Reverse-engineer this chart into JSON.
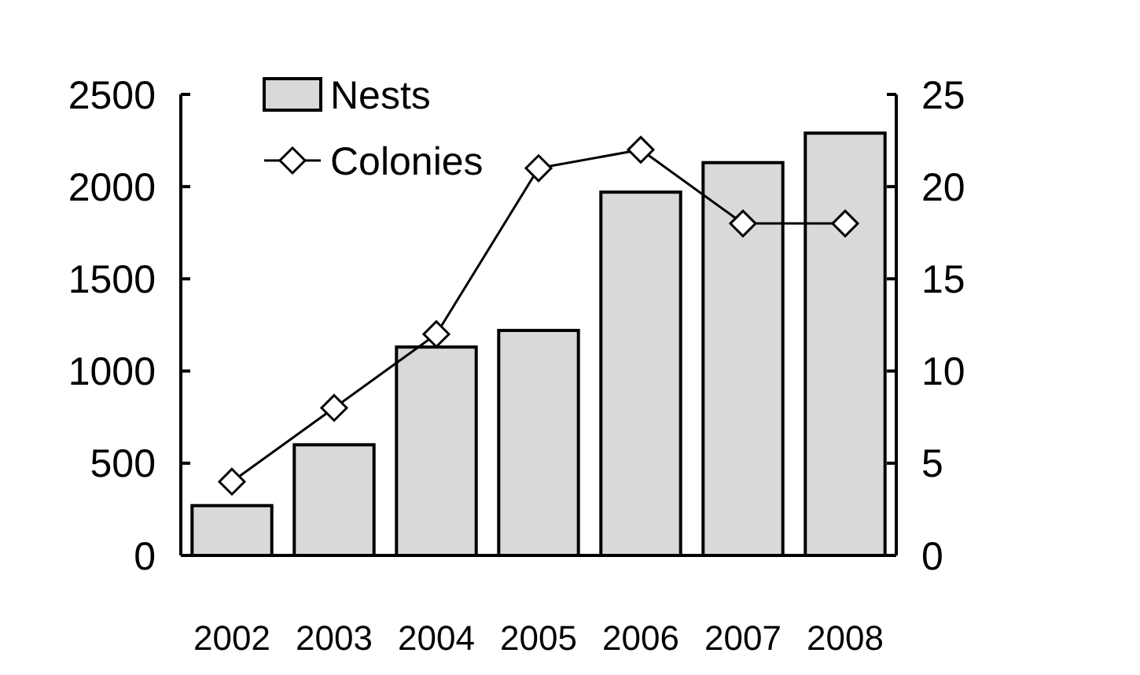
{
  "chart_data": {
    "type": "bar",
    "categories": [
      "2002",
      "2003",
      "2004",
      "2005",
      "2006",
      "2007",
      "2008"
    ],
    "series": [
      {
        "name": "Nests",
        "color": "#d9d9d9",
        "values": [
          270,
          600,
          1130,
          1220,
          1970,
          2130,
          2290
        ]
      },
      {
        "name": "Colonies",
        "type": "line",
        "axis": "y2",
        "color": "#000000",
        "marker": "diamond",
        "values": [
          4,
          8,
          12,
          21,
          22,
          18,
          18
        ]
      }
    ],
    "ylim": [
      0,
      2500
    ],
    "yticks": [
      0,
      500,
      1000,
      1500,
      2000,
      2500
    ],
    "y2lim": [
      0,
      25
    ],
    "y2ticks": [
      0,
      5,
      10,
      15,
      20,
      25
    ],
    "legend": "top left",
    "grid": false
  }
}
